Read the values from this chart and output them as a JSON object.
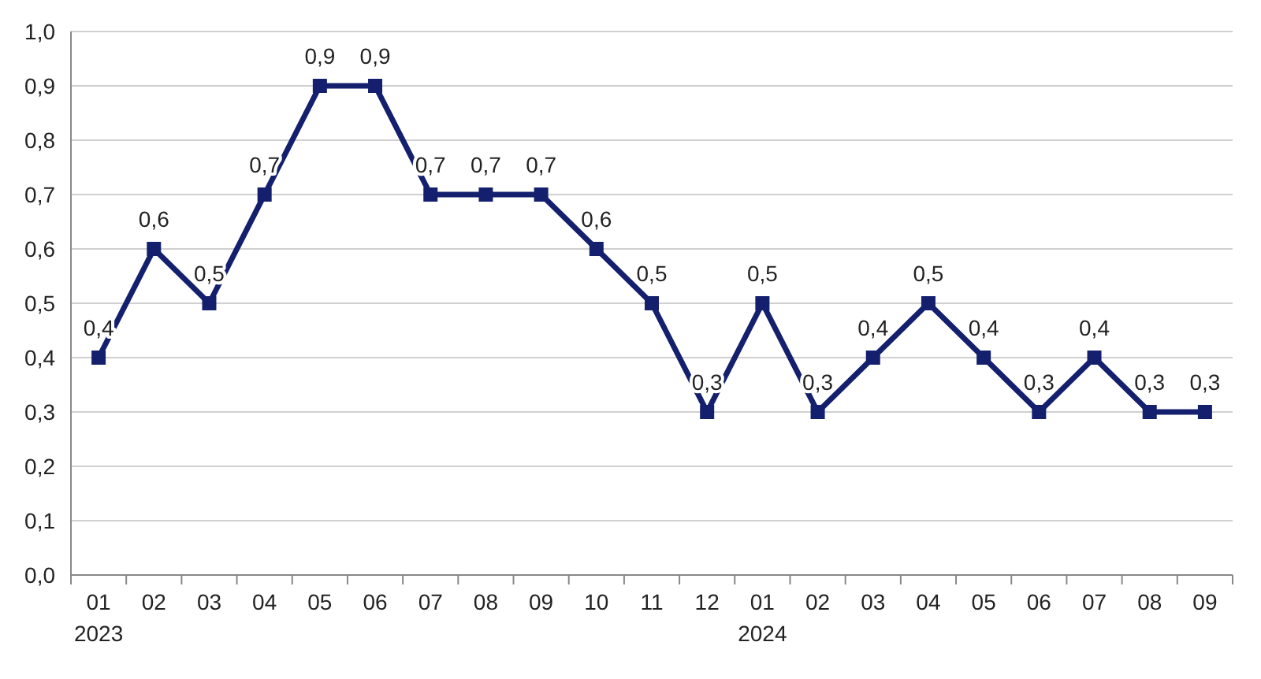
{
  "chart_data": {
    "type": "line",
    "categories": [
      "01\n2023",
      "02",
      "03",
      "04",
      "05",
      "06",
      "07",
      "08",
      "09",
      "10",
      "11",
      "12",
      "01\n2024",
      "02",
      "03",
      "04",
      "05",
      "06",
      "07",
      "08",
      "09"
    ],
    "series": [
      {
        "color": "#14206e",
        "values": [
          0.4,
          0.6,
          0.5,
          0.7,
          0.9,
          0.9,
          0.7,
          0.7,
          0.7,
          0.6,
          0.5,
          0.3,
          0.5,
          0.3,
          0.4,
          0.5,
          0.4,
          0.3,
          0.4,
          0.3,
          0.3
        ],
        "value_labels": [
          "0,4",
          "0,6",
          "0,5",
          "0,7",
          "0,9",
          "0,9",
          "0,7",
          "0,7",
          "0,7",
          "0,6",
          "0,5",
          "0,3",
          "0,5",
          "0,3",
          "0,4",
          "0,5",
          "0,4",
          "0,3",
          "0,4",
          "0,3",
          "0,3"
        ]
      }
    ],
    "ylim": [
      0,
      1
    ],
    "yticks": [
      {
        "value": 0,
        "label": "0,0"
      },
      {
        "value": 0.1,
        "label": "0,1"
      },
      {
        "value": 0.2,
        "label": "0,2"
      },
      {
        "value": 0.3,
        "label": "0,3"
      },
      {
        "value": 0.4,
        "label": "0,4"
      },
      {
        "value": 0.5,
        "label": "0,5"
      },
      {
        "value": 0.6,
        "label": "0,6"
      },
      {
        "value": 0.7,
        "label": "0,7"
      },
      {
        "value": 0.8,
        "label": "0,8"
      },
      {
        "value": 0.9,
        "label": "0,9"
      },
      {
        "value": 1,
        "label": "1,0"
      }
    ],
    "grid": "y",
    "marker": "square",
    "line_style": "solid"
  }
}
